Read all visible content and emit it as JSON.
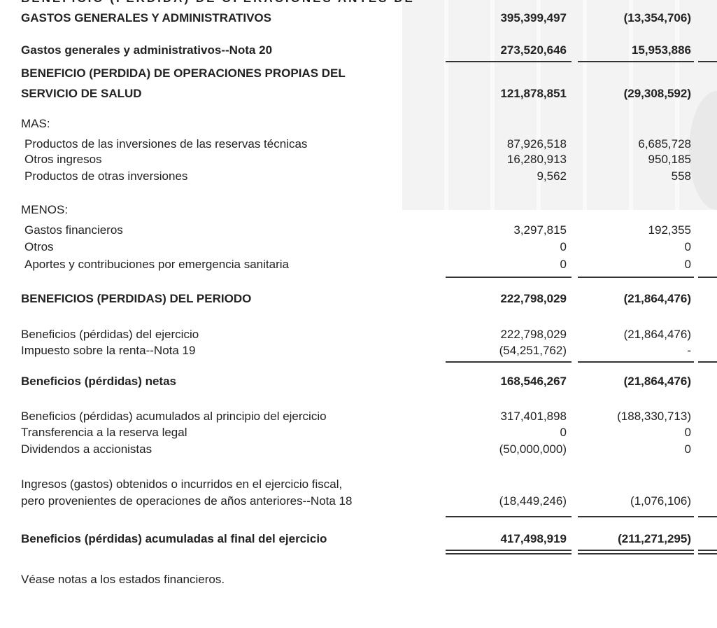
{
  "statement": {
    "rows": [
      {
        "label": "BENEFICIO (PERDIDA) DE OPERACIONES ANTES DE",
        "v1": "",
        "v2": ""
      },
      {
        "label": "GASTOS GENERALES Y ADMINISTRATIVOS",
        "v1": "395,399,497",
        "v2": "(13,354,706)"
      },
      {
        "label": "Gastos generales y administrativos--Nota 20",
        "v1": "273,520,646",
        "v2": "15,953,886"
      },
      {
        "label": "BENEFICIO (PERDIDA) DE OPERACIONES PROPIAS DEL",
        "v1": "",
        "v2": ""
      },
      {
        "label": "SERVICIO DE SALUD",
        "v1": "121,878,851",
        "v2": "(29,308,592)"
      },
      {
        "label": "MAS:",
        "v1": "",
        "v2": ""
      },
      {
        "label": "Productos de las inversiones de las reservas técnicas",
        "v1": "87,926,518",
        "v2": "6,685,728"
      },
      {
        "label": "Otros ingresos",
        "v1": "16,280,913",
        "v2": "950,185"
      },
      {
        "label": "Productos de otras inversiones",
        "v1": "9,562",
        "v2": "558"
      },
      {
        "label": "MENOS:",
        "v1": "",
        "v2": ""
      },
      {
        "label": "Gastos financieros",
        "v1": "3,297,815",
        "v2": "192,355"
      },
      {
        "label": "Otros",
        "v1": "0",
        "v2": "0"
      },
      {
        "label": "Aportes y contribuciones por emergencia sanitaria",
        "v1": "0",
        "v2": "0"
      },
      {
        "label": "BENEFICIOS (PERDIDAS) DEL PERIODO",
        "v1": "222,798,029",
        "v2": "(21,864,476)"
      },
      {
        "label": "Beneficios (pérdidas) del ejercicio",
        "v1": "222,798,029",
        "v2": "(21,864,476)"
      },
      {
        "label": "Impuesto sobre la renta--Nota 19",
        "v1": "(54,251,762)",
        "v2": "-"
      },
      {
        "label": "Beneficios (pérdidas) netas",
        "v1": "168,546,267",
        "v2": "(21,864,476)"
      },
      {
        "label": "Beneficios (pérdidas) acumulados al principio del ejercicio",
        "v1": "317,401,898",
        "v2": "(188,330,713)"
      },
      {
        "label": "Transferencia a la reserva legal",
        "v1": "0",
        "v2": "0"
      },
      {
        "label": "Dividendos a accionistas",
        "v1": "(50,000,000)",
        "v2": "0"
      },
      {
        "label": "Ingresos (gastos) obtenidos o incurridos en el ejercicio fiscal,",
        "v1": "",
        "v2": ""
      },
      {
        "label": "pero provenientes de operaciones de años anteriores--Nota 18",
        "v1": "(18,449,246)",
        "v2": "(1,076,106)"
      },
      {
        "label": "Beneficios (pérdidas) acumuladas al final del ejercicio",
        "v1": "417,498,919",
        "v2": "(211,271,295)"
      }
    ],
    "footnote": "Véase notas a los estados financieros."
  }
}
